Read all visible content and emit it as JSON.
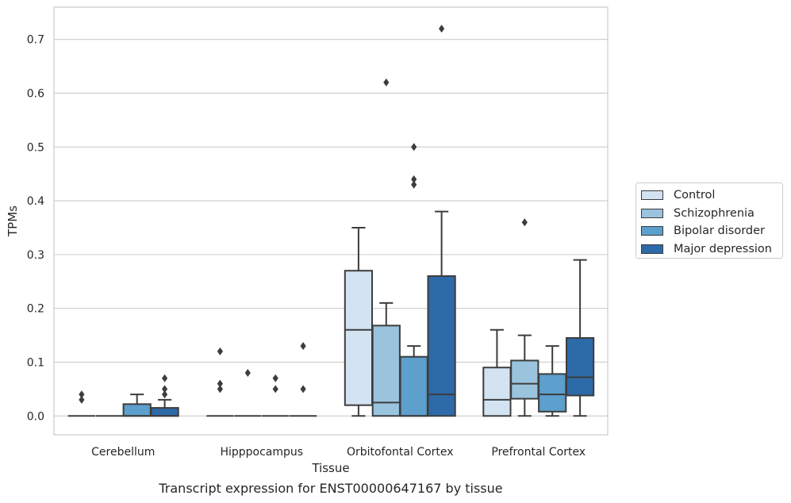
{
  "chart_data": {
    "type": "box",
    "caption": "Transcript expression for ENST00000647167 by tissue",
    "xlabel": "Tissue",
    "ylabel": "TPMs",
    "ylim": [
      -0.035,
      0.76
    ],
    "yticks": [
      0.0,
      0.1,
      0.2,
      0.3,
      0.4,
      0.5,
      0.6,
      0.7
    ],
    "ytick_labels": [
      "0.0",
      "0.1",
      "0.2",
      "0.3",
      "0.4",
      "0.5",
      "0.6",
      "0.7"
    ],
    "grid": "horizontal",
    "legend_position": "right",
    "categories": [
      "Cerebellum",
      "Hipppocampus",
      "Orbitofontal Cortex",
      "Prefrontal Cortex"
    ],
    "series": [
      {
        "name": "Control",
        "color": "#d3e3f2",
        "boxes": [
          {
            "whislo": 0.0,
            "q1": 0.0,
            "med": 0.0,
            "q3": 0.0,
            "whishi": 0.0,
            "fliers": [
              0.04,
              0.03
            ]
          },
          {
            "whislo": 0.0,
            "q1": 0.0,
            "med": 0.0,
            "q3": 0.0,
            "whishi": 0.0,
            "fliers": [
              0.12,
              0.06,
              0.05
            ]
          },
          {
            "whislo": 0.0,
            "q1": 0.02,
            "med": 0.16,
            "q3": 0.27,
            "whishi": 0.35,
            "fliers": []
          },
          {
            "whislo": 0.0,
            "q1": 0.0,
            "med": 0.03,
            "q3": 0.09,
            "whishi": 0.16,
            "fliers": []
          }
        ]
      },
      {
        "name": "Schizophrenia",
        "color": "#9ac3dd",
        "boxes": [
          {
            "whislo": 0.0,
            "q1": 0.0,
            "med": 0.0,
            "q3": 0.0,
            "whishi": 0.0,
            "fliers": []
          },
          {
            "whislo": 0.0,
            "q1": 0.0,
            "med": 0.0,
            "q3": 0.0,
            "whishi": 0.0,
            "fliers": [
              0.08
            ]
          },
          {
            "whislo": 0.0,
            "q1": 0.0,
            "med": 0.025,
            "q3": 0.168,
            "whishi": 0.21,
            "fliers": [
              0.62
            ]
          },
          {
            "whislo": 0.0,
            "q1": 0.032,
            "med": 0.06,
            "q3": 0.103,
            "whishi": 0.15,
            "fliers": [
              0.36
            ]
          }
        ]
      },
      {
        "name": "Bipolar disorder",
        "color": "#5d9fcd",
        "boxes": [
          {
            "whislo": 0.0,
            "q1": 0.0,
            "med": 0.0,
            "q3": 0.022,
            "whishi": 0.04,
            "fliers": []
          },
          {
            "whislo": 0.0,
            "q1": 0.0,
            "med": 0.0,
            "q3": 0.0,
            "whishi": 0.0,
            "fliers": [
              0.07,
              0.05
            ]
          },
          {
            "whislo": 0.0,
            "q1": 0.0,
            "med": 0.0,
            "q3": 0.11,
            "whishi": 0.13,
            "fliers": [
              0.5,
              0.44,
              0.43
            ]
          },
          {
            "whislo": 0.0,
            "q1": 0.008,
            "med": 0.04,
            "q3": 0.078,
            "whishi": 0.13,
            "fliers": []
          }
        ]
      },
      {
        "name": "Major depression",
        "color": "#2d6aa8",
        "boxes": [
          {
            "whislo": 0.0,
            "q1": 0.0,
            "med": 0.0,
            "q3": 0.015,
            "whishi": 0.03,
            "fliers": [
              0.07,
              0.05,
              0.04
            ]
          },
          {
            "whislo": 0.0,
            "q1": 0.0,
            "med": 0.0,
            "q3": 0.0,
            "whishi": 0.0,
            "fliers": [
              0.13,
              0.05
            ]
          },
          {
            "whislo": 0.0,
            "q1": 0.0,
            "med": 0.04,
            "q3": 0.26,
            "whishi": 0.38,
            "fliers": [
              0.72
            ]
          },
          {
            "whislo": 0.0,
            "q1": 0.038,
            "med": 0.072,
            "q3": 0.145,
            "whishi": 0.29,
            "fliers": []
          }
        ]
      }
    ]
  },
  "legend": {
    "items": [
      {
        "label": "Control",
        "color": "#d3e3f2"
      },
      {
        "label": "Schizophrenia",
        "color": "#9ac3dd"
      },
      {
        "label": "Bipolar disorder",
        "color": "#5d9fcd"
      },
      {
        "label": "Major depression",
        "color": "#2d6aa8"
      }
    ]
  }
}
